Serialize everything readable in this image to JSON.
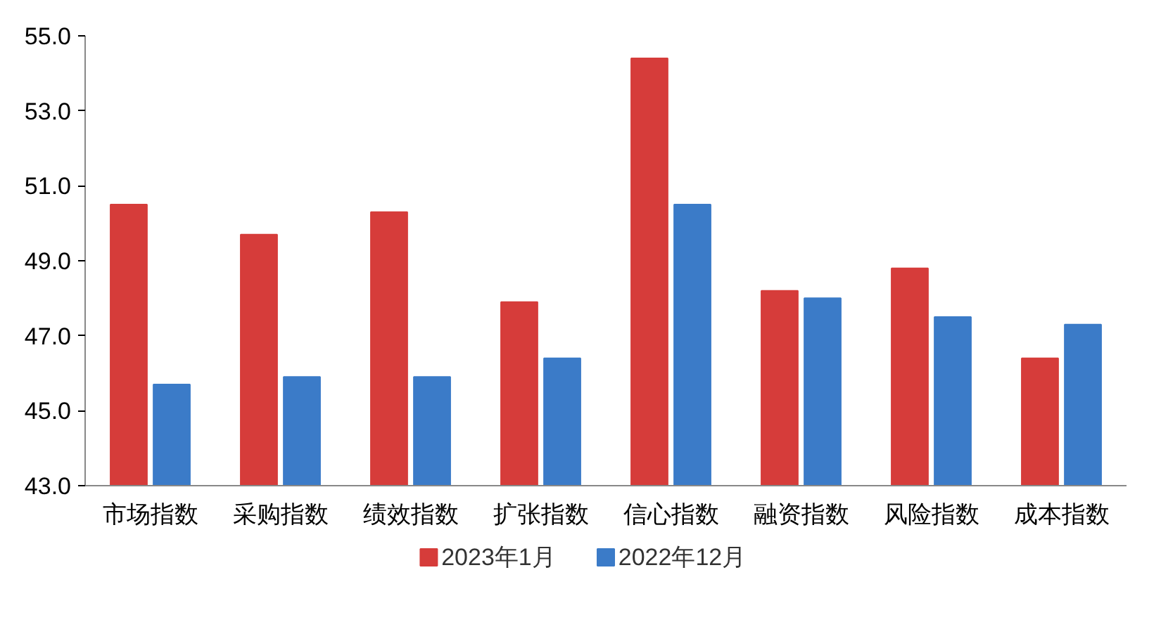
{
  "chart_data": {
    "type": "bar",
    "categories": [
      "市场指数",
      "采购指数",
      "绩效指数",
      "扩张指数",
      "信心指数",
      "融资指数",
      "风险指数",
      "成本指数"
    ],
    "series": [
      {
        "name": "2023年1月",
        "color": "#d63c3a",
        "values": [
          50.5,
          49.7,
          50.3,
          47.9,
          54.4,
          48.2,
          48.8,
          46.4
        ]
      },
      {
        "name": "2022年12月",
        "color": "#3b7bc8",
        "values": [
          45.7,
          45.9,
          45.9,
          46.4,
          50.5,
          48.0,
          47.5,
          47.3
        ]
      }
    ],
    "ylim": [
      43,
      55
    ],
    "yticks": [
      {
        "value": 43,
        "label": "43.0"
      },
      {
        "value": 45,
        "label": "45.0"
      },
      {
        "value": 47,
        "label": "47.0"
      },
      {
        "value": 49,
        "label": "49.0"
      },
      {
        "value": 51,
        "label": "51.0"
      },
      {
        "value": 53,
        "label": "53.0"
      },
      {
        "value": 55,
        "label": "55.0"
      }
    ],
    "grid": false,
    "legend": "bottom"
  }
}
